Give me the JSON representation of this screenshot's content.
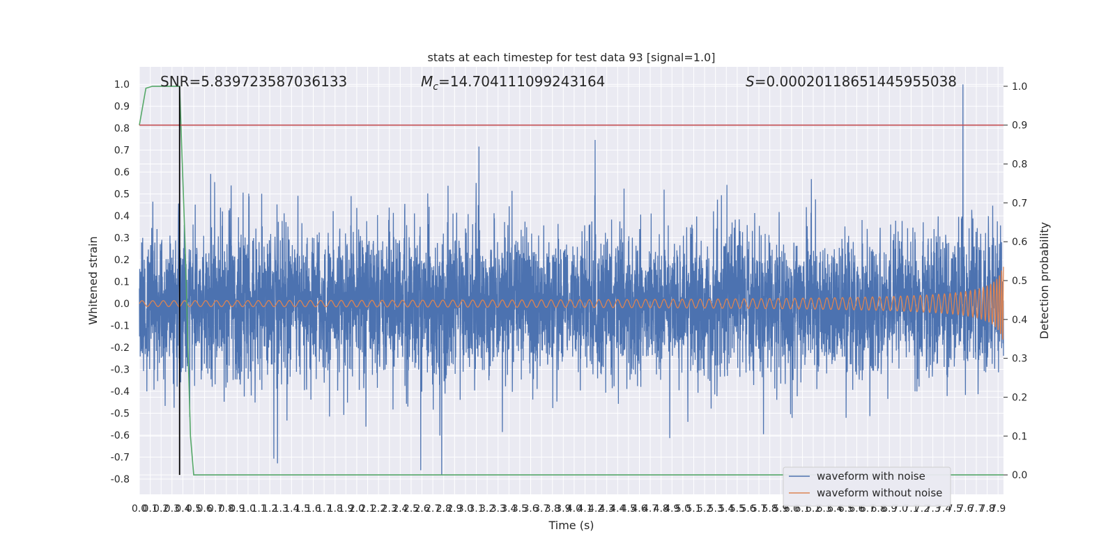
{
  "chart_data": {
    "type": "line",
    "title": "stats at each timestep for test data 93 [signal=1.0]",
    "xlabel": "Time (s)",
    "ylabel": "Whitened strain",
    "ylabel_right": "Detection probability",
    "xlim": [
      0.0,
      7.95
    ],
    "ylim": [
      -0.87,
      1.08
    ],
    "ylim_right": [
      -0.05,
      1.05
    ],
    "x_ticks": [
      "0.0",
      "0.1",
      "0.2",
      "0.3",
      "0.4",
      "0.5",
      "0.6",
      "0.7",
      "0.8",
      "0.9",
      "1.0",
      "1.1",
      "1.2",
      "1.3",
      "1.4",
      "1.5",
      "1.6",
      "1.7",
      "1.8",
      "1.9",
      "2.0",
      "2.1",
      "2.2",
      "2.3",
      "2.4",
      "2.5",
      "2.6",
      "2.7",
      "2.8",
      "2.9",
      "3.0",
      "3.1",
      "3.2",
      "3.3",
      "3.4",
      "3.5",
      "3.6",
      "3.7",
      "3.8",
      "3.9",
      "4.0",
      "4.1",
      "4.2",
      "4.3",
      "4.4",
      "4.5",
      "4.6",
      "4.7",
      "4.8",
      "4.9",
      "5.0",
      "5.1",
      "5.2",
      "5.3",
      "5.4",
      "5.5",
      "5.6",
      "5.7",
      "5.8",
      "5.9",
      "6.0",
      "6.1",
      "6.2",
      "6.3",
      "6.4",
      "6.5",
      "6.6",
      "6.7",
      "6.8",
      "6.9",
      "7.0",
      "7.1",
      "7.2",
      "7.3",
      "7.4",
      "7.5",
      "7.6",
      "7.7",
      "7.8",
      "7.9"
    ],
    "y_ticks_left": [
      "-0.8",
      "-0.7",
      "-0.6",
      "-0.5",
      "-0.4",
      "-0.3",
      "-0.2",
      "-0.1",
      "0.0",
      "0.1",
      "0.2",
      "0.3",
      "0.4",
      "0.5",
      "0.6",
      "0.7",
      "0.8",
      "0.9",
      "1.0"
    ],
    "y_ticks_right": [
      "0.0",
      "0.1",
      "0.2",
      "0.3",
      "0.4",
      "0.5",
      "0.6",
      "0.7",
      "0.8",
      "0.9",
      "1.0"
    ],
    "annotations": {
      "snr": "SNR=5.839723587036133",
      "mc_symbol": "M",
      "mc_sub": "c",
      "mc_value": "=14.704111099243164",
      "s_symbol": "S",
      "s_value": "=0.00020118651445955038"
    },
    "grid": true,
    "legend_placement": "lower-right",
    "legend": [
      {
        "name": "waveform with noise",
        "color": "#4c72b0"
      },
      {
        "name": "waveform without noise",
        "color": "#dd8452"
      }
    ],
    "series": [
      {
        "name": "waveform with noise",
        "axis": "left",
        "kind": "noise",
        "color": "#4c72b0",
        "peak_max": 1.0,
        "peak_min": -0.78
      },
      {
        "name": "waveform without noise",
        "axis": "left",
        "kind": "chirp",
        "color": "#dd8452",
        "start_amplitude": 0.005,
        "end_amplitude": 0.18
      },
      {
        "name": "detection probability",
        "axis": "right",
        "color": "#55a868",
        "x": [
          0.0,
          0.06,
          0.12,
          0.2,
          0.3,
          0.37,
          0.42,
          0.47,
          0.5,
          7.95
        ],
        "values": [
          0.9,
          0.995,
          1.0,
          1.0,
          1.0,
          1.0,
          0.6,
          0.1,
          0.0,
          0.0
        ]
      },
      {
        "name": "threshold",
        "axis": "right",
        "color": "#c44e52",
        "x": [
          0.0,
          7.95
        ],
        "values": [
          0.9,
          0.9
        ]
      }
    ],
    "vline": {
      "x": 0.37,
      "ymin": 0.0,
      "ymax": 1.0,
      "axis": "right",
      "color": "#000000"
    }
  }
}
